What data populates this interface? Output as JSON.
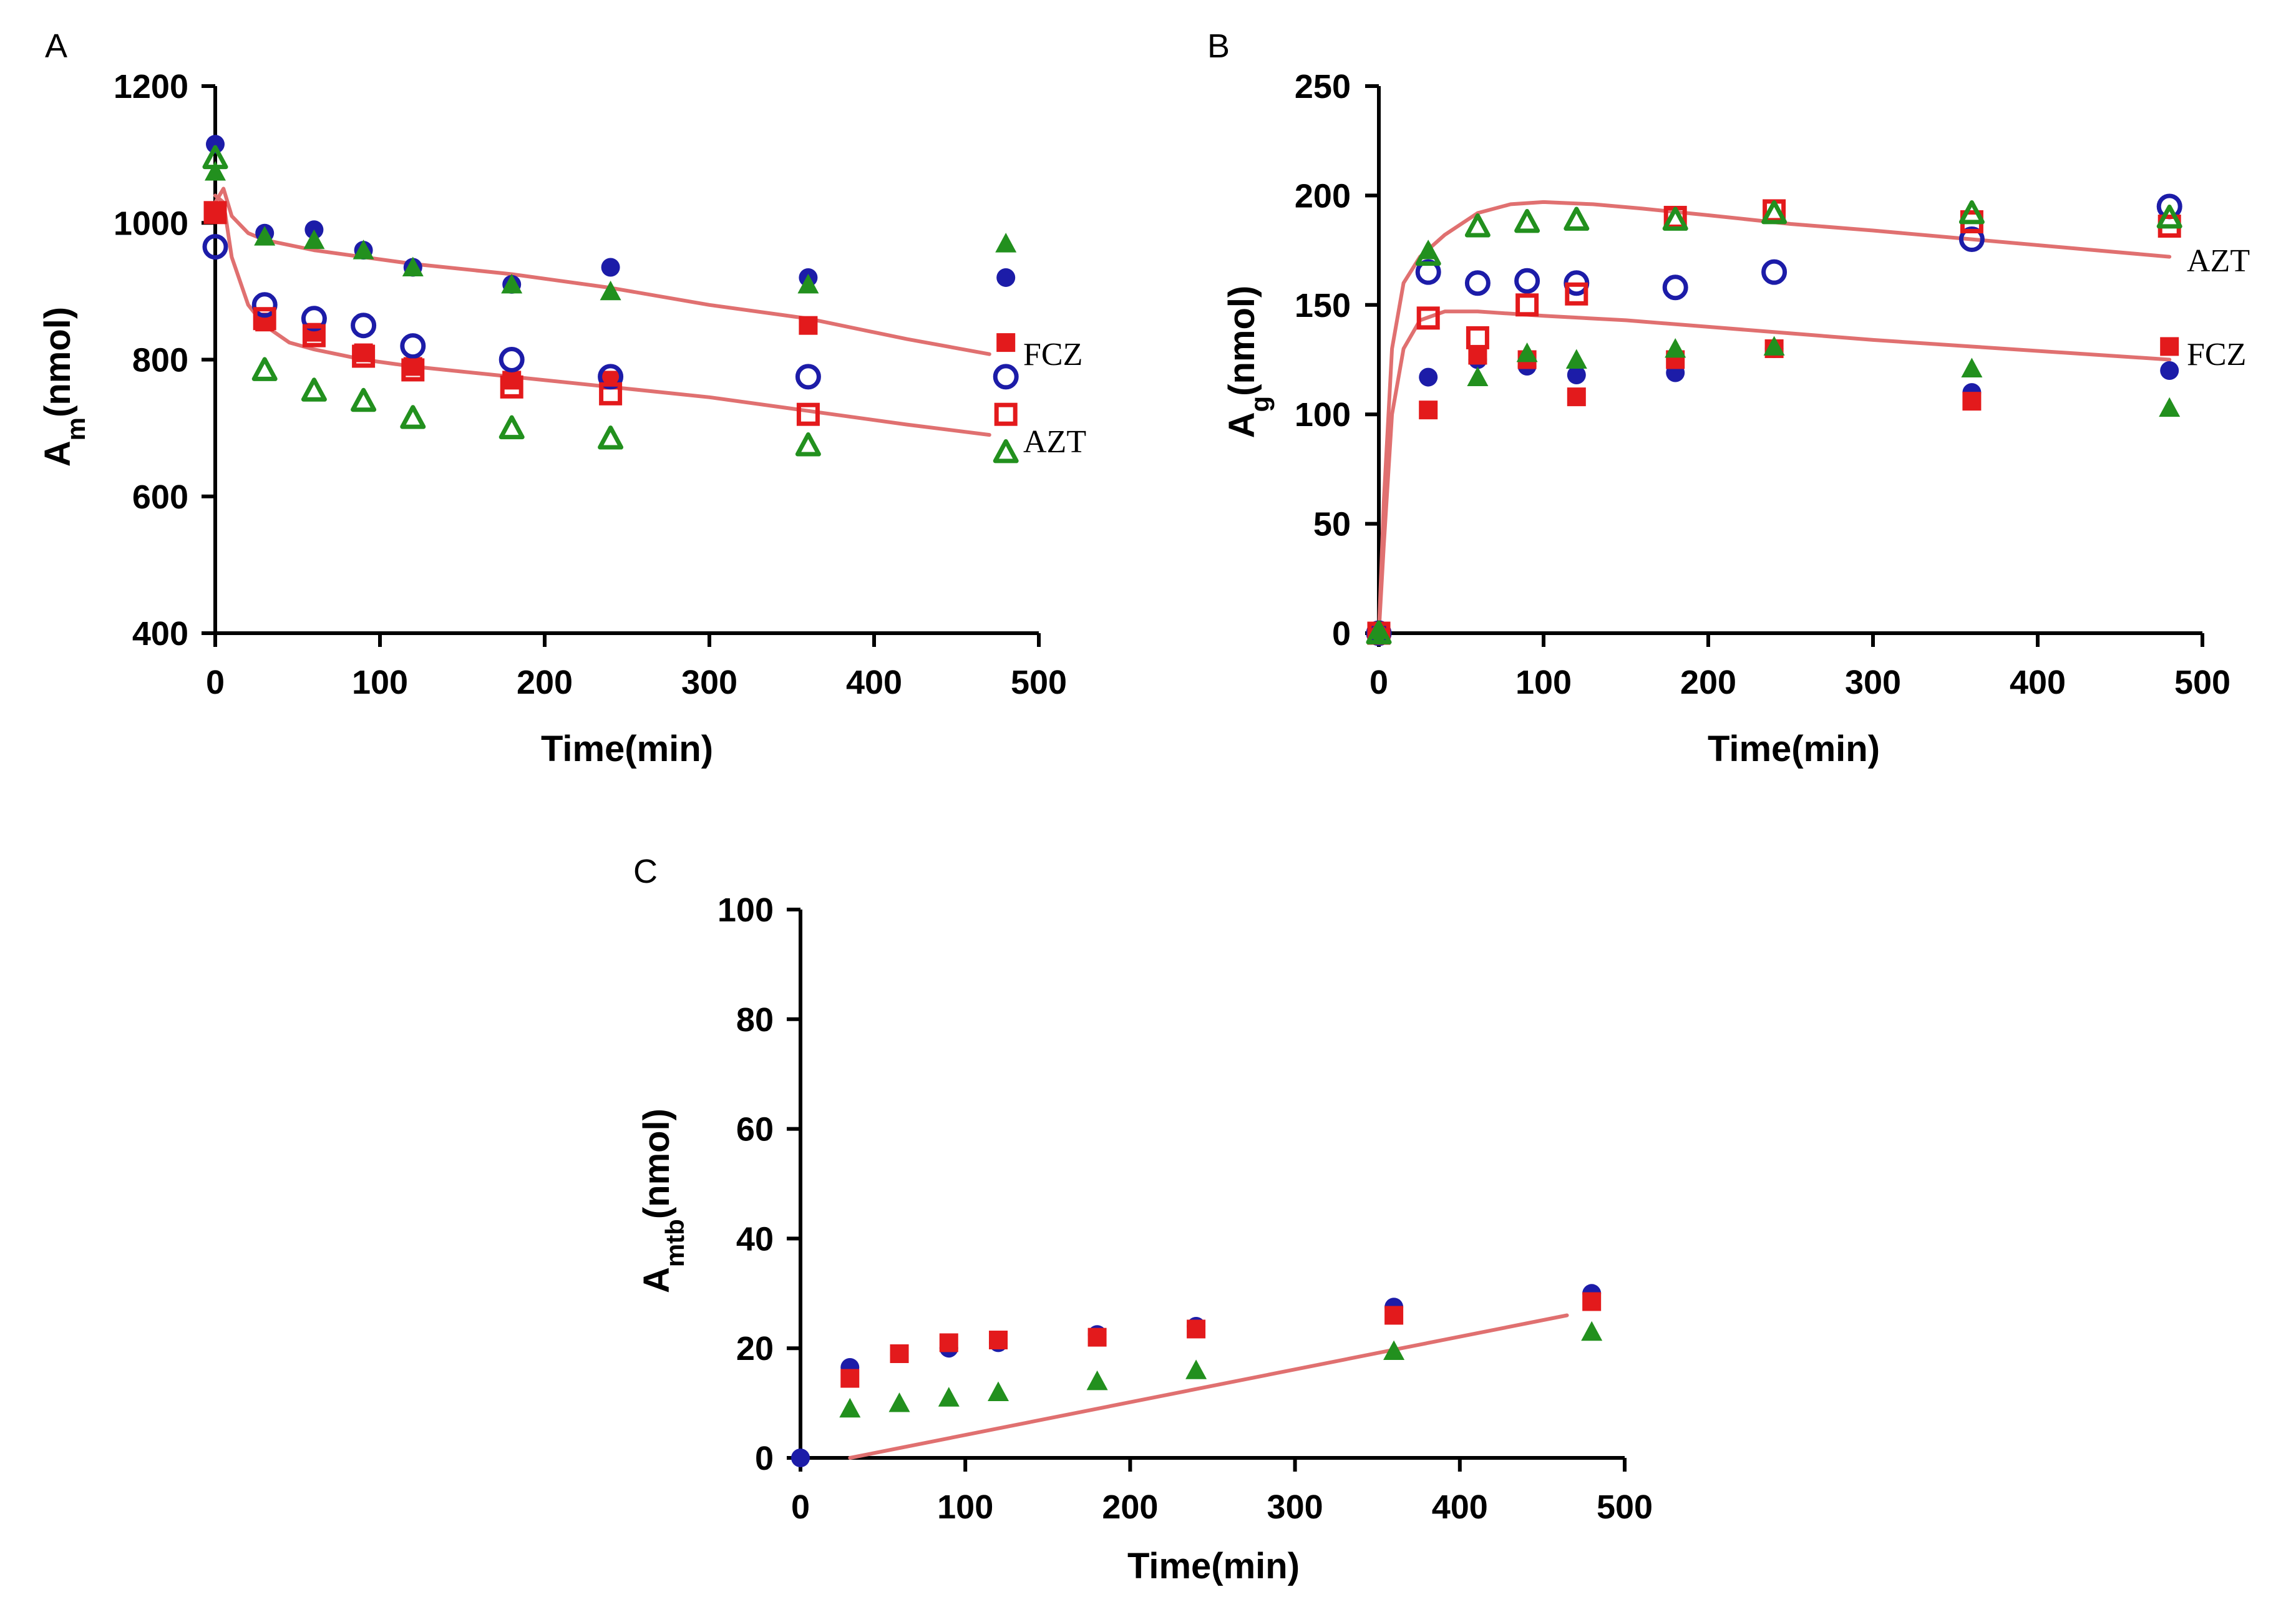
{
  "colors": {
    "fcz_fit": "#e07070",
    "azt_fit": "#e07070",
    "blue": "#1c1ca8",
    "red": "#e31a1c",
    "green": "#22901e"
  },
  "chart_data": [
    {
      "panel": "A",
      "type": "scatter",
      "xlabel": "Time(min)",
      "ylabel_main": "A",
      "ylabel_sub": "m",
      "ylabel_tail": "(nmol)",
      "xlim": [
        0,
        500
      ],
      "ylim": [
        400,
        1200
      ],
      "xticks": [
        0,
        100,
        200,
        300,
        400,
        500
      ],
      "yticks": [
        400,
        600,
        800,
        1000,
        1200
      ],
      "grid": false,
      "series": [
        {
          "name": "FCZ blue filled circle",
          "marker": "circle",
          "filled": true,
          "color": "blue",
          "x": [
            0,
            30,
            60,
            90,
            120,
            180,
            240,
            360,
            480
          ],
          "y": [
            1115,
            985,
            990,
            960,
            935,
            910,
            935,
            920,
            920
          ]
        },
        {
          "name": "FCZ red filled square",
          "marker": "square",
          "filled": true,
          "color": "red",
          "x": [
            0,
            30,
            60,
            90,
            120,
            180,
            240,
            360,
            480
          ],
          "y": [
            1015,
            855,
            840,
            810,
            790,
            770,
            770,
            850,
            825
          ]
        },
        {
          "name": "FCZ green filled triangle",
          "marker": "triangle",
          "filled": true,
          "color": "green",
          "x": [
            0,
            30,
            60,
            90,
            120,
            180,
            240,
            360,
            480
          ],
          "y": [
            1075,
            980,
            975,
            960,
            935,
            910,
            900,
            910,
            970
          ]
        },
        {
          "name": "AZT blue open circle",
          "marker": "circle",
          "filled": false,
          "color": "blue",
          "x": [
            0,
            30,
            60,
            90,
            120,
            180,
            240,
            360,
            480
          ],
          "y": [
            965,
            880,
            860,
            850,
            820,
            800,
            775,
            775,
            775
          ]
        },
        {
          "name": "AZT red open square",
          "marker": "square",
          "filled": false,
          "color": "red",
          "x": [
            0,
            30,
            60,
            90,
            120,
            180,
            240,
            360,
            480
          ],
          "y": [
            1015,
            860,
            835,
            805,
            785,
            760,
            750,
            720,
            720
          ]
        },
        {
          "name": "AZT green open triangle",
          "marker": "triangle",
          "filled": false,
          "color": "green",
          "x": [
            0,
            30,
            60,
            90,
            120,
            180,
            240,
            360,
            480
          ],
          "y": [
            1095,
            785,
            755,
            740,
            715,
            700,
            685,
            675,
            665
          ]
        }
      ],
      "fits": [
        {
          "label": "FCZ",
          "color": "fcz_fit",
          "x": [
            0,
            5,
            10,
            20,
            30,
            60,
            90,
            120,
            180,
            240,
            300,
            360,
            420,
            470
          ],
          "y": [
            1030,
            1050,
            1010,
            985,
            975,
            960,
            950,
            940,
            925,
            905,
            880,
            860,
            830,
            808
          ]
        },
        {
          "label": "AZT",
          "color": "azt_fit",
          "x": [
            0,
            5,
            10,
            20,
            30,
            45,
            60,
            90,
            120,
            180,
            240,
            300,
            360,
            420,
            470
          ],
          "y": [
            1040,
            1030,
            950,
            880,
            850,
            825,
            815,
            800,
            790,
            775,
            760,
            745,
            725,
            705,
            690
          ]
        }
      ]
    },
    {
      "panel": "B",
      "type": "scatter",
      "xlabel": "Time(min)",
      "ylabel_main": "A",
      "ylabel_sub": "g",
      "ylabel_tail": "(nmol)",
      "xlim": [
        0,
        500
      ],
      "ylim": [
        0,
        250
      ],
      "xticks": [
        0,
        100,
        200,
        300,
        400,
        500
      ],
      "yticks": [
        0,
        50,
        100,
        150,
        200,
        250
      ],
      "grid": false,
      "series": [
        {
          "name": "FCZ blue filled circle",
          "marker": "circle",
          "filled": true,
          "color": "blue",
          "x": [
            0,
            30,
            60,
            90,
            120,
            180,
            240,
            360,
            480
          ],
          "y": [
            0,
            117,
            125,
            122,
            118,
            119,
            130,
            110,
            120
          ]
        },
        {
          "name": "FCZ red filled square",
          "marker": "square",
          "filled": true,
          "color": "red",
          "x": [
            0,
            30,
            60,
            90,
            120,
            180,
            240,
            360,
            480
          ],
          "y": [
            0,
            102,
            127,
            125,
            108,
            125,
            130,
            106,
            131
          ]
        },
        {
          "name": "FCZ green filled triangle",
          "marker": "triangle",
          "filled": true,
          "color": "green",
          "x": [
            0,
            30,
            60,
            90,
            120,
            180,
            240,
            360,
            480
          ],
          "y": [
            0,
            175,
            117,
            128,
            125,
            130,
            131,
            121,
            103
          ]
        },
        {
          "name": "AZT blue open circle",
          "marker": "circle",
          "filled": false,
          "color": "blue",
          "x": [
            0,
            30,
            60,
            90,
            120,
            180,
            240,
            360,
            480
          ],
          "y": [
            0,
            165,
            160,
            161,
            160,
            158,
            165,
            180,
            195
          ]
        },
        {
          "name": "AZT red open square",
          "marker": "square",
          "filled": false,
          "color": "red",
          "x": [
            0,
            30,
            60,
            90,
            120,
            180,
            240,
            360,
            480
          ],
          "y": [
            0,
            144,
            135,
            150,
            155,
            190,
            193,
            188,
            186
          ]
        },
        {
          "name": "AZT green open triangle",
          "marker": "triangle",
          "filled": false,
          "color": "green",
          "x": [
            0,
            30,
            60,
            90,
            120,
            180,
            240,
            360,
            480
          ],
          "y": [
            0,
            173,
            186,
            188,
            189,
            189,
            192,
            192,
            190
          ]
        }
      ],
      "fits": [
        {
          "label": "AZT",
          "color": "azt_fit",
          "x": [
            0,
            3,
            8,
            15,
            25,
            40,
            60,
            80,
            100,
            130,
            160,
            200,
            250,
            300,
            360,
            420,
            480
          ],
          "y": [
            0,
            60,
            130,
            160,
            172,
            182,
            192,
            196,
            197,
            196,
            194,
            191,
            187,
            184,
            180,
            176,
            172
          ]
        },
        {
          "label": "FCZ",
          "color": "fcz_fit",
          "x": [
            0,
            3,
            8,
            15,
            25,
            40,
            60,
            80,
            100,
            150,
            200,
            250,
            300,
            360,
            420,
            480
          ],
          "y": [
            0,
            40,
            100,
            130,
            143,
            147,
            147,
            146,
            145,
            143,
            140,
            137,
            134,
            131,
            128,
            125
          ]
        }
      ]
    },
    {
      "panel": "C",
      "type": "scatter",
      "xlabel": "Time(min)",
      "ylabel_main": "A",
      "ylabel_sub": "mtb",
      "ylabel_tail": "(nmol)",
      "xlim": [
        0,
        500
      ],
      "ylim": [
        0,
        100
      ],
      "xticks": [
        0,
        100,
        200,
        300,
        400,
        500
      ],
      "yticks": [
        0,
        20,
        40,
        60,
        80,
        100
      ],
      "grid": false,
      "series": [
        {
          "name": "blue filled circle",
          "marker": "circle",
          "filled": true,
          "color": "blue",
          "x": [
            0,
            30,
            60,
            90,
            120,
            180,
            240,
            360,
            480
          ],
          "y": [
            0,
            16.5,
            19,
            20,
            21,
            22.5,
            24,
            27.5,
            30
          ]
        },
        {
          "name": "red filled square",
          "marker": "square",
          "filled": true,
          "color": "red",
          "x": [
            30,
            60,
            90,
            120,
            180,
            240,
            360,
            480
          ],
          "y": [
            14.5,
            19,
            21,
            21.5,
            22,
            23.5,
            26,
            28.5
          ]
        },
        {
          "name": "green filled triangle",
          "marker": "triangle",
          "filled": true,
          "color": "green",
          "x": [
            30,
            60,
            90,
            120,
            180,
            240,
            360,
            480
          ],
          "y": [
            9,
            10,
            11,
            12,
            14,
            16,
            19.5,
            23
          ]
        }
      ],
      "fits": [
        {
          "label": "",
          "color": "fcz_fit",
          "x": [
            30,
            465
          ],
          "y": [
            0,
            26
          ]
        }
      ]
    }
  ]
}
